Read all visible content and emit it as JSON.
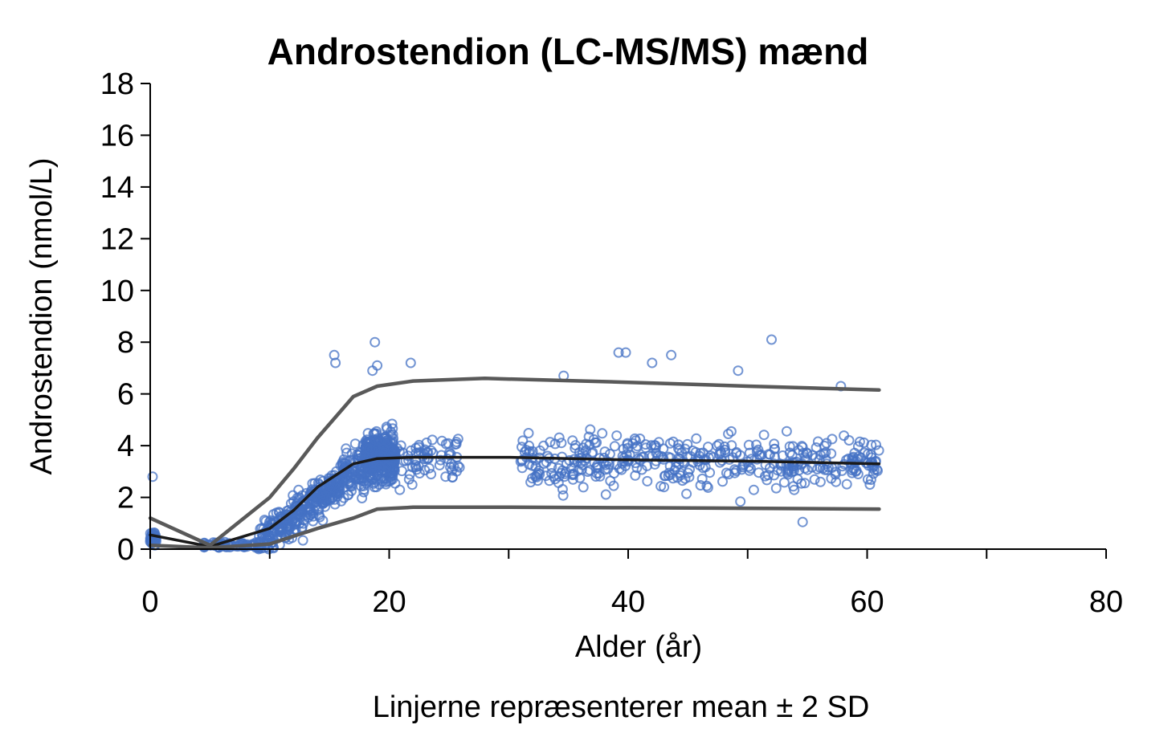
{
  "chart_data": {
    "type": "scatter",
    "title": "Androstendion (LC-MS/MS) mænd",
    "xlabel": "Alder (år)",
    "ylabel": "Androstendion (nmol/L)",
    "caption": "Linjerne repræsenterer mean ± 2 SD",
    "xlim": [
      0,
      80
    ],
    "ylim": [
      0,
      18
    ],
    "xticks": [
      0,
      20,
      40,
      60,
      80
    ],
    "yticks": [
      0,
      2,
      4,
      6,
      8,
      10,
      12,
      14,
      16,
      18
    ],
    "grid": false,
    "point_color": "#4472C4",
    "line_color_sd": "#595959",
    "line_color_mean": "#1a1a1a",
    "series": [
      {
        "name": "mean",
        "x": [
          0,
          5,
          10,
          12,
          14,
          17,
          19,
          22,
          30,
          40,
          50,
          61
        ],
        "y": [
          0.55,
          0.1,
          0.8,
          1.5,
          2.4,
          3.3,
          3.5,
          3.55,
          3.55,
          3.45,
          3.4,
          3.3
        ]
      },
      {
        "name": "+2 SD",
        "x": [
          0,
          5,
          10,
          12,
          14,
          17,
          19,
          22,
          28,
          40,
          50,
          61
        ],
        "y": [
          1.2,
          0.15,
          2.0,
          3.1,
          4.3,
          5.9,
          6.3,
          6.5,
          6.6,
          6.45,
          6.3,
          6.15
        ]
      },
      {
        "name": "-2 SD",
        "x": [
          0,
          5,
          10,
          12,
          14,
          17,
          19,
          22,
          30,
          40,
          50,
          61
        ],
        "y": [
          0.15,
          0.05,
          0.2,
          0.5,
          0.8,
          1.2,
          1.55,
          1.62,
          1.62,
          1.6,
          1.58,
          1.55
        ]
      }
    ],
    "scatter_groups": [
      {
        "x_range": [
          0,
          0.5
        ],
        "mean_y": 0.4,
        "spread_y": 0.35,
        "count": 45
      },
      {
        "x_range": [
          4.5,
          9
        ],
        "mean_y": 0.15,
        "spread_y": 0.12,
        "count": 60
      },
      {
        "x_range": [
          9,
          16
        ],
        "mean_y": 1.4,
        "spread_y": 0.9,
        "count": 320
      },
      {
        "x_range": [
          16,
          18
        ],
        "mean_y": 3.0,
        "spread_y": 1.1,
        "count": 90
      },
      {
        "x_range": [
          18,
          20.5
        ],
        "mean_y": 3.6,
        "spread_y": 1.1,
        "count": 350
      },
      {
        "x_range": [
          20.5,
          26
        ],
        "mean_y": 3.5,
        "spread_y": 1.1,
        "count": 70
      },
      {
        "x_range": [
          31,
          61
        ],
        "mean_y": 3.4,
        "spread_y": 1.15,
        "count": 420
      }
    ],
    "scatter_outliers": [
      {
        "x": 0.2,
        "y": 2.8
      },
      {
        "x": 15.4,
        "y": 7.5
      },
      {
        "x": 15.5,
        "y": 7.2
      },
      {
        "x": 18.8,
        "y": 8.0
      },
      {
        "x": 19.0,
        "y": 7.1
      },
      {
        "x": 18.6,
        "y": 6.9
      },
      {
        "x": 21.8,
        "y": 7.2
      },
      {
        "x": 52.0,
        "y": 8.1
      },
      {
        "x": 39.2,
        "y": 7.6
      },
      {
        "x": 39.8,
        "y": 7.6
      },
      {
        "x": 42.0,
        "y": 7.2
      },
      {
        "x": 43.6,
        "y": 7.5
      },
      {
        "x": 49.2,
        "y": 6.9
      },
      {
        "x": 34.6,
        "y": 6.7
      },
      {
        "x": 57.8,
        "y": 6.3
      },
      {
        "x": 54.6,
        "y": 1.05
      }
    ]
  }
}
